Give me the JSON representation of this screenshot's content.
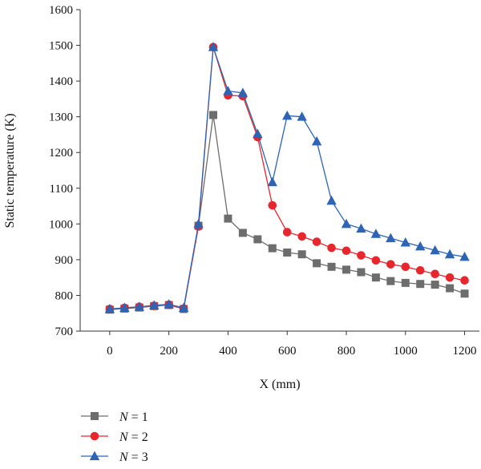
{
  "chart_data": {
    "type": "line",
    "title": "",
    "xlabel": "X (mm)",
    "ylabel": "Static temperature (K)",
    "xlim": [
      -100,
      1250
    ],
    "ylim": [
      700,
      1600
    ],
    "xticks": [
      0,
      200,
      400,
      600,
      800,
      1000,
      1200
    ],
    "yticks": [
      700,
      800,
      900,
      1000,
      1100,
      1200,
      1300,
      1400,
      1500,
      1600
    ],
    "legend_position": "bottom-left",
    "grid": false,
    "series": [
      {
        "name": "N = 1",
        "color": "#6d6d6d",
        "marker": "square",
        "x": [
          0,
          50,
          100,
          150,
          200,
          250,
          300,
          350,
          400,
          450,
          500,
          550,
          600,
          650,
          700,
          750,
          800,
          850,
          900,
          950,
          1000,
          1050,
          1100,
          1150,
          1200
        ],
        "y": [
          760,
          763,
          766,
          770,
          773,
          762,
          995,
          1305,
          1015,
          975,
          957,
          932,
          920,
          915,
          890,
          880,
          872,
          865,
          850,
          840,
          835,
          832,
          830,
          820,
          805
        ]
      },
      {
        "name": "N = 2",
        "color": "#e8262e",
        "marker": "circle",
        "x": [
          0,
          50,
          100,
          150,
          200,
          250,
          300,
          350,
          400,
          450,
          500,
          550,
          600,
          650,
          700,
          750,
          800,
          850,
          900,
          950,
          1000,
          1050,
          1100,
          1150,
          1200
        ],
        "y": [
          762,
          765,
          768,
          771,
          774,
          763,
          993,
          1495,
          1360,
          1358,
          1243,
          1052,
          977,
          965,
          950,
          933,
          925,
          912,
          898,
          887,
          880,
          870,
          860,
          850,
          842
        ]
      },
      {
        "name": "N = 3",
        "color": "#2e64b4",
        "marker": "triangle",
        "x": [
          0,
          50,
          100,
          150,
          200,
          250,
          300,
          350,
          400,
          450,
          500,
          550,
          600,
          650,
          700,
          750,
          800,
          850,
          900,
          950,
          1000,
          1050,
          1100,
          1150,
          1200
        ],
        "y": [
          762,
          765,
          768,
          772,
          775,
          765,
          1000,
          1495,
          1372,
          1367,
          1252,
          1117,
          1303,
          1300,
          1231,
          1065,
          1000,
          987,
          972,
          960,
          948,
          937,
          926,
          915,
          908
        ]
      }
    ]
  }
}
